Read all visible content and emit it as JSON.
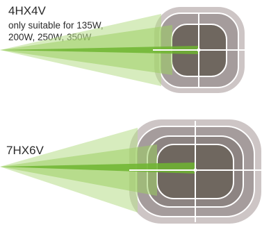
{
  "top": {
    "model": "4HX4V",
    "note_line1": "only suitable for 135W,",
    "note_line2": "200W, 250W, 350W"
  },
  "bottom": {
    "model": "7HX6V"
  },
  "colors": {
    "beam_light": "#c9e2a6",
    "beam_mid": "#9ccf63",
    "beam_core": "#6fb530",
    "rect_outer": "#cdc5c5",
    "rect_mid": "#a59c9c",
    "rect_inner": "#6f675f",
    "rect_left_tint": "#5f6b4f",
    "outline": "#ffffff"
  }
}
